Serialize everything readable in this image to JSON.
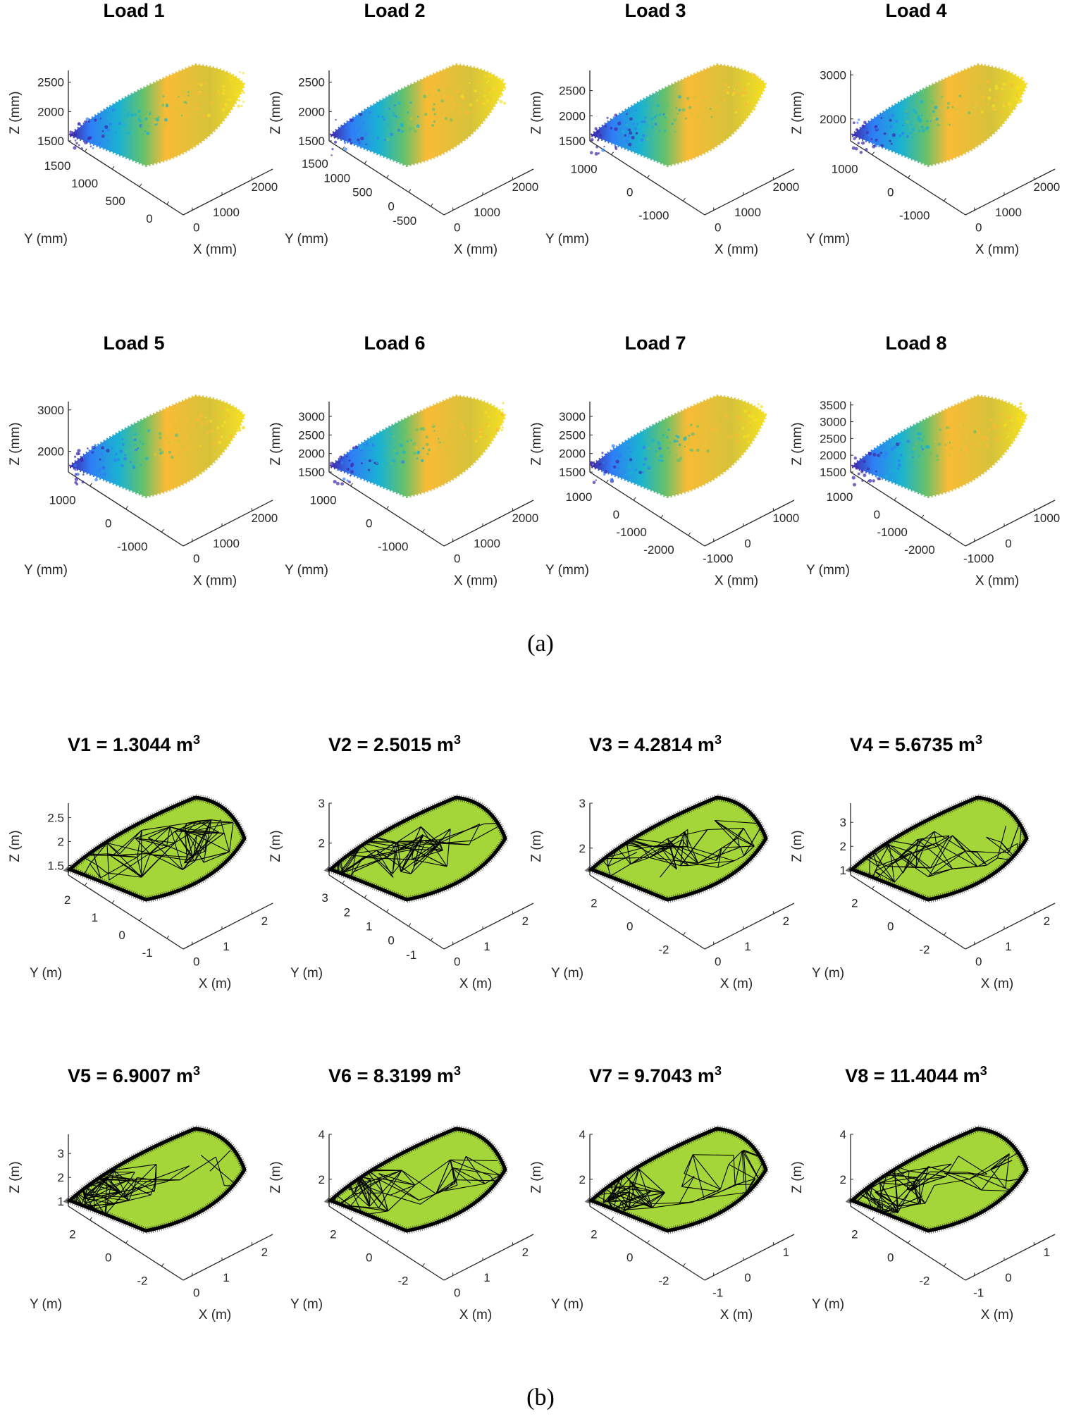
{
  "figure": {
    "caption_a": "(a)",
    "caption_b": "(b)"
  },
  "chart_data": [
    {
      "type": "scatter",
      "subtype": "3d-point-cloud",
      "title": "Load 1",
      "xlabel": "X (mm)",
      "ylabel": "Y (mm)",
      "zlabel": "Z (mm)",
      "zticks": [
        "1500",
        "2000",
        "2500"
      ],
      "yticks": [
        "1500",
        "1000",
        "500",
        "0"
      ],
      "xticks": [
        "0",
        "1000",
        "2000"
      ],
      "zlim": [
        1500,
        2700
      ],
      "colormap": "parula",
      "colors": [
        "#3e26a8",
        "#2f7ef6",
        "#1ab2d2",
        "#64c16c",
        "#d6c23a",
        "#f9bb36",
        "#f5e022"
      ]
    },
    {
      "type": "scatter",
      "subtype": "3d-point-cloud",
      "title": "Load 2",
      "xlabel": "X (mm)",
      "ylabel": "Y (mm)",
      "zlabel": "Z (mm)",
      "zticks": [
        "1500",
        "2000",
        "2500"
      ],
      "yticks": [
        "1500",
        "1000",
        "500",
        "0",
        "-500"
      ],
      "xticks": [
        "0",
        "1000",
        "2000"
      ],
      "zlim": [
        1500,
        2700
      ],
      "colormap": "parula",
      "colors": [
        "#3e26a8",
        "#2f7ef6",
        "#1ab2d2",
        "#64c16c",
        "#d6c23a",
        "#f9bb36",
        "#f5e022"
      ]
    },
    {
      "type": "scatter",
      "subtype": "3d-point-cloud",
      "title": "Load 3",
      "xlabel": "X (mm)",
      "ylabel": "Y (mm)",
      "zlabel": "Z (mm)",
      "zticks": [
        "1500",
        "2000",
        "2500"
      ],
      "yticks": [
        "1000",
        "0",
        "-1000"
      ],
      "xticks": [
        "0",
        "1000",
        "2000"
      ],
      "zlim": [
        1500,
        2900
      ],
      "colormap": "parula",
      "colors": [
        "#3e26a8",
        "#2f7ef6",
        "#1ab2d2",
        "#64c16c",
        "#d6c23a",
        "#f9bb36",
        "#f5e022"
      ]
    },
    {
      "type": "scatter",
      "subtype": "3d-point-cloud",
      "title": "Load 4",
      "xlabel": "X (mm)",
      "ylabel": "Y (mm)",
      "zlabel": "Z (mm)",
      "zticks": [
        "2000",
        "3000"
      ],
      "yticks": [
        "1000",
        "0",
        "-1000"
      ],
      "xticks": [
        "0",
        "1000",
        "2000"
      ],
      "zlim": [
        1500,
        3100
      ],
      "colormap": "parula",
      "colors": [
        "#3e26a8",
        "#2f7ef6",
        "#1ab2d2",
        "#64c16c",
        "#d6c23a",
        "#f9bb36",
        "#f5e022"
      ]
    },
    {
      "type": "scatter",
      "subtype": "3d-point-cloud",
      "title": "Load 5",
      "xlabel": "X (mm)",
      "ylabel": "Y (mm)",
      "zlabel": "Z (mm)",
      "zticks": [
        "2000",
        "3000"
      ],
      "yticks": [
        "1000",
        "0",
        "-1000"
      ],
      "xticks": [
        "0",
        "1000",
        "2000"
      ],
      "zlim": [
        1500,
        3200
      ],
      "colormap": "parula",
      "colors": [
        "#3e26a8",
        "#2f7ef6",
        "#1ab2d2",
        "#64c16c",
        "#d6c23a",
        "#f9bb36",
        "#f5e022"
      ]
    },
    {
      "type": "scatter",
      "subtype": "3d-point-cloud",
      "title": "Load 6",
      "xlabel": "X (mm)",
      "ylabel": "Y (mm)",
      "zlabel": "Z (mm)",
      "zticks": [
        "1500",
        "2000",
        "2500",
        "3000"
      ],
      "yticks": [
        "1000",
        "0",
        "-1000"
      ],
      "xticks": [
        "0",
        "1000",
        "2000"
      ],
      "zlim": [
        1500,
        3400
      ],
      "colormap": "parula",
      "colors": [
        "#3e26a8",
        "#2f7ef6",
        "#1ab2d2",
        "#64c16c",
        "#d6c23a",
        "#f9bb36",
        "#f5e022"
      ]
    },
    {
      "type": "scatter",
      "subtype": "3d-point-cloud",
      "title": "Load 7",
      "xlabel": "X (mm)",
      "ylabel": "Y (mm)",
      "zlabel": "Z (mm)",
      "zticks": [
        "1500",
        "2000",
        "2500",
        "3000"
      ],
      "yticks": [
        "1000",
        "0",
        "-1000",
        "-2000"
      ],
      "xticks": [
        "-1000",
        "0",
        "1000"
      ],
      "zlim": [
        1500,
        3400
      ],
      "colormap": "parula",
      "colors": [
        "#3e26a8",
        "#2f7ef6",
        "#1ab2d2",
        "#64c16c",
        "#d6c23a",
        "#f9bb36",
        "#f5e022"
      ]
    },
    {
      "type": "scatter",
      "subtype": "3d-point-cloud",
      "title": "Load 8",
      "xlabel": "X (mm)",
      "ylabel": "Y (mm)",
      "zlabel": "Z (mm)",
      "zticks": [
        "1500",
        "2000",
        "2500",
        "3000",
        "3500"
      ],
      "yticks": [
        "1000",
        "0",
        "-1000",
        "-2000"
      ],
      "xticks": [
        "-1000",
        "0",
        "1000"
      ],
      "zlim": [
        1500,
        3600
      ],
      "colormap": "parula",
      "colors": [
        "#3e26a8",
        "#2f7ef6",
        "#1ab2d2",
        "#64c16c",
        "#d6c23a",
        "#f9bb36",
        "#f5e022"
      ]
    },
    {
      "type": "surface",
      "subtype": "3d-triangulated-mesh",
      "title": "V1 = 1.3044 m",
      "title_sup": "3",
      "volume_m3": 1.3044,
      "xlabel": "X (m)",
      "ylabel": "Y (m)",
      "zlabel": "Z (m)",
      "zticks": [
        "1.5",
        "2",
        "2.5"
      ],
      "yticks": [
        "2",
        "1",
        "0",
        "-1"
      ],
      "xticks": [
        "0",
        "1",
        "2"
      ],
      "zlim": [
        1.3,
        2.8
      ],
      "face_color": "#a4d63a",
      "edge_color": "#000000"
    },
    {
      "type": "surface",
      "subtype": "3d-triangulated-mesh",
      "title": "V2 = 2.5015 m",
      "title_sup": "3",
      "volume_m3": 2.5015,
      "xlabel": "X (m)",
      "ylabel": "Y (m)",
      "zlabel": "Z (m)",
      "zticks": [
        "2",
        "3"
      ],
      "yticks": [
        "3",
        "2",
        "1",
        "0",
        "-1"
      ],
      "xticks": [
        "0",
        "1",
        "2"
      ],
      "zlim": [
        1.2,
        3
      ],
      "face_color": "#a4d63a",
      "edge_color": "#000000"
    },
    {
      "type": "surface",
      "subtype": "3d-triangulated-mesh",
      "title": "V3 = 4.2814 m",
      "title_sup": "3",
      "volume_m3": 4.2814,
      "xlabel": "X (m)",
      "ylabel": "Y (m)",
      "zlabel": "Z (m)",
      "zticks": [
        "2",
        "3"
      ],
      "yticks": [
        "2",
        "0",
        "-2"
      ],
      "xticks": [
        "0",
        "1",
        "2"
      ],
      "zlim": [
        1.4,
        3
      ],
      "face_color": "#a4d63a",
      "edge_color": "#000000"
    },
    {
      "type": "surface",
      "subtype": "3d-triangulated-mesh",
      "title": "V4 = 5.6735 m",
      "title_sup": "3",
      "volume_m3": 5.6735,
      "xlabel": "X (m)",
      "ylabel": "Y (m)",
      "zlabel": "Z (m)",
      "zticks": [
        "1",
        "2",
        "3"
      ],
      "yticks": [
        "2",
        "0",
        "-2"
      ],
      "xticks": [
        "0",
        "1",
        "2"
      ],
      "zlim": [
        0.8,
        3.8
      ],
      "face_color": "#a4d63a",
      "edge_color": "#000000"
    },
    {
      "type": "surface",
      "subtype": "3d-triangulated-mesh",
      "title": "V5 = 6.9007 m",
      "title_sup": "3",
      "volume_m3": 6.9007,
      "xlabel": "X (m)",
      "ylabel": "Y (m)",
      "zlabel": "Z (m)",
      "zticks": [
        "1",
        "2",
        "3"
      ],
      "yticks": [
        "2",
        "0",
        "-2"
      ],
      "xticks": [
        "0",
        "1",
        "2"
      ],
      "zlim": [
        0.8,
        3.8
      ],
      "face_color": "#a4d63a",
      "edge_color": "#000000"
    },
    {
      "type": "surface",
      "subtype": "3d-triangulated-mesh",
      "title": "V6 = 8.3199 m",
      "title_sup": "3",
      "volume_m3": 8.3199,
      "xlabel": "X (m)",
      "ylabel": "Y (m)",
      "zlabel": "Z (m)",
      "zticks": [
        "2",
        "4"
      ],
      "yticks": [
        "2",
        "0",
        "-2"
      ],
      "xticks": [
        "0",
        "1",
        "2"
      ],
      "zlim": [
        0.8,
        4
      ],
      "face_color": "#a4d63a",
      "edge_color": "#000000"
    },
    {
      "type": "surface",
      "subtype": "3d-triangulated-mesh",
      "title": "V7 = 9.7043 m",
      "title_sup": "3",
      "volume_m3": 9.7043,
      "xlabel": "X (m)",
      "ylabel": "Y (m)",
      "zlabel": "Z (m)",
      "zticks": [
        "2",
        "4"
      ],
      "yticks": [
        "2",
        "0",
        "-2"
      ],
      "xticks": [
        "-1",
        "0",
        "1"
      ],
      "zlim": [
        0.8,
        4
      ],
      "face_color": "#a4d63a",
      "edge_color": "#000000"
    },
    {
      "type": "surface",
      "subtype": "3d-triangulated-mesh",
      "title": "V8 = 11.4044 m",
      "title_sup": "3",
      "volume_m3": 11.4044,
      "xlabel": "X (m)",
      "ylabel": "Y (m)",
      "zlabel": "Z (m)",
      "zticks": [
        "2",
        "4"
      ],
      "yticks": [
        "2",
        "0",
        "-2"
      ],
      "xticks": [
        "-1",
        "0",
        "1"
      ],
      "zlim": [
        0.8,
        4
      ],
      "face_color": "#a4d63a",
      "edge_color": "#000000"
    }
  ]
}
